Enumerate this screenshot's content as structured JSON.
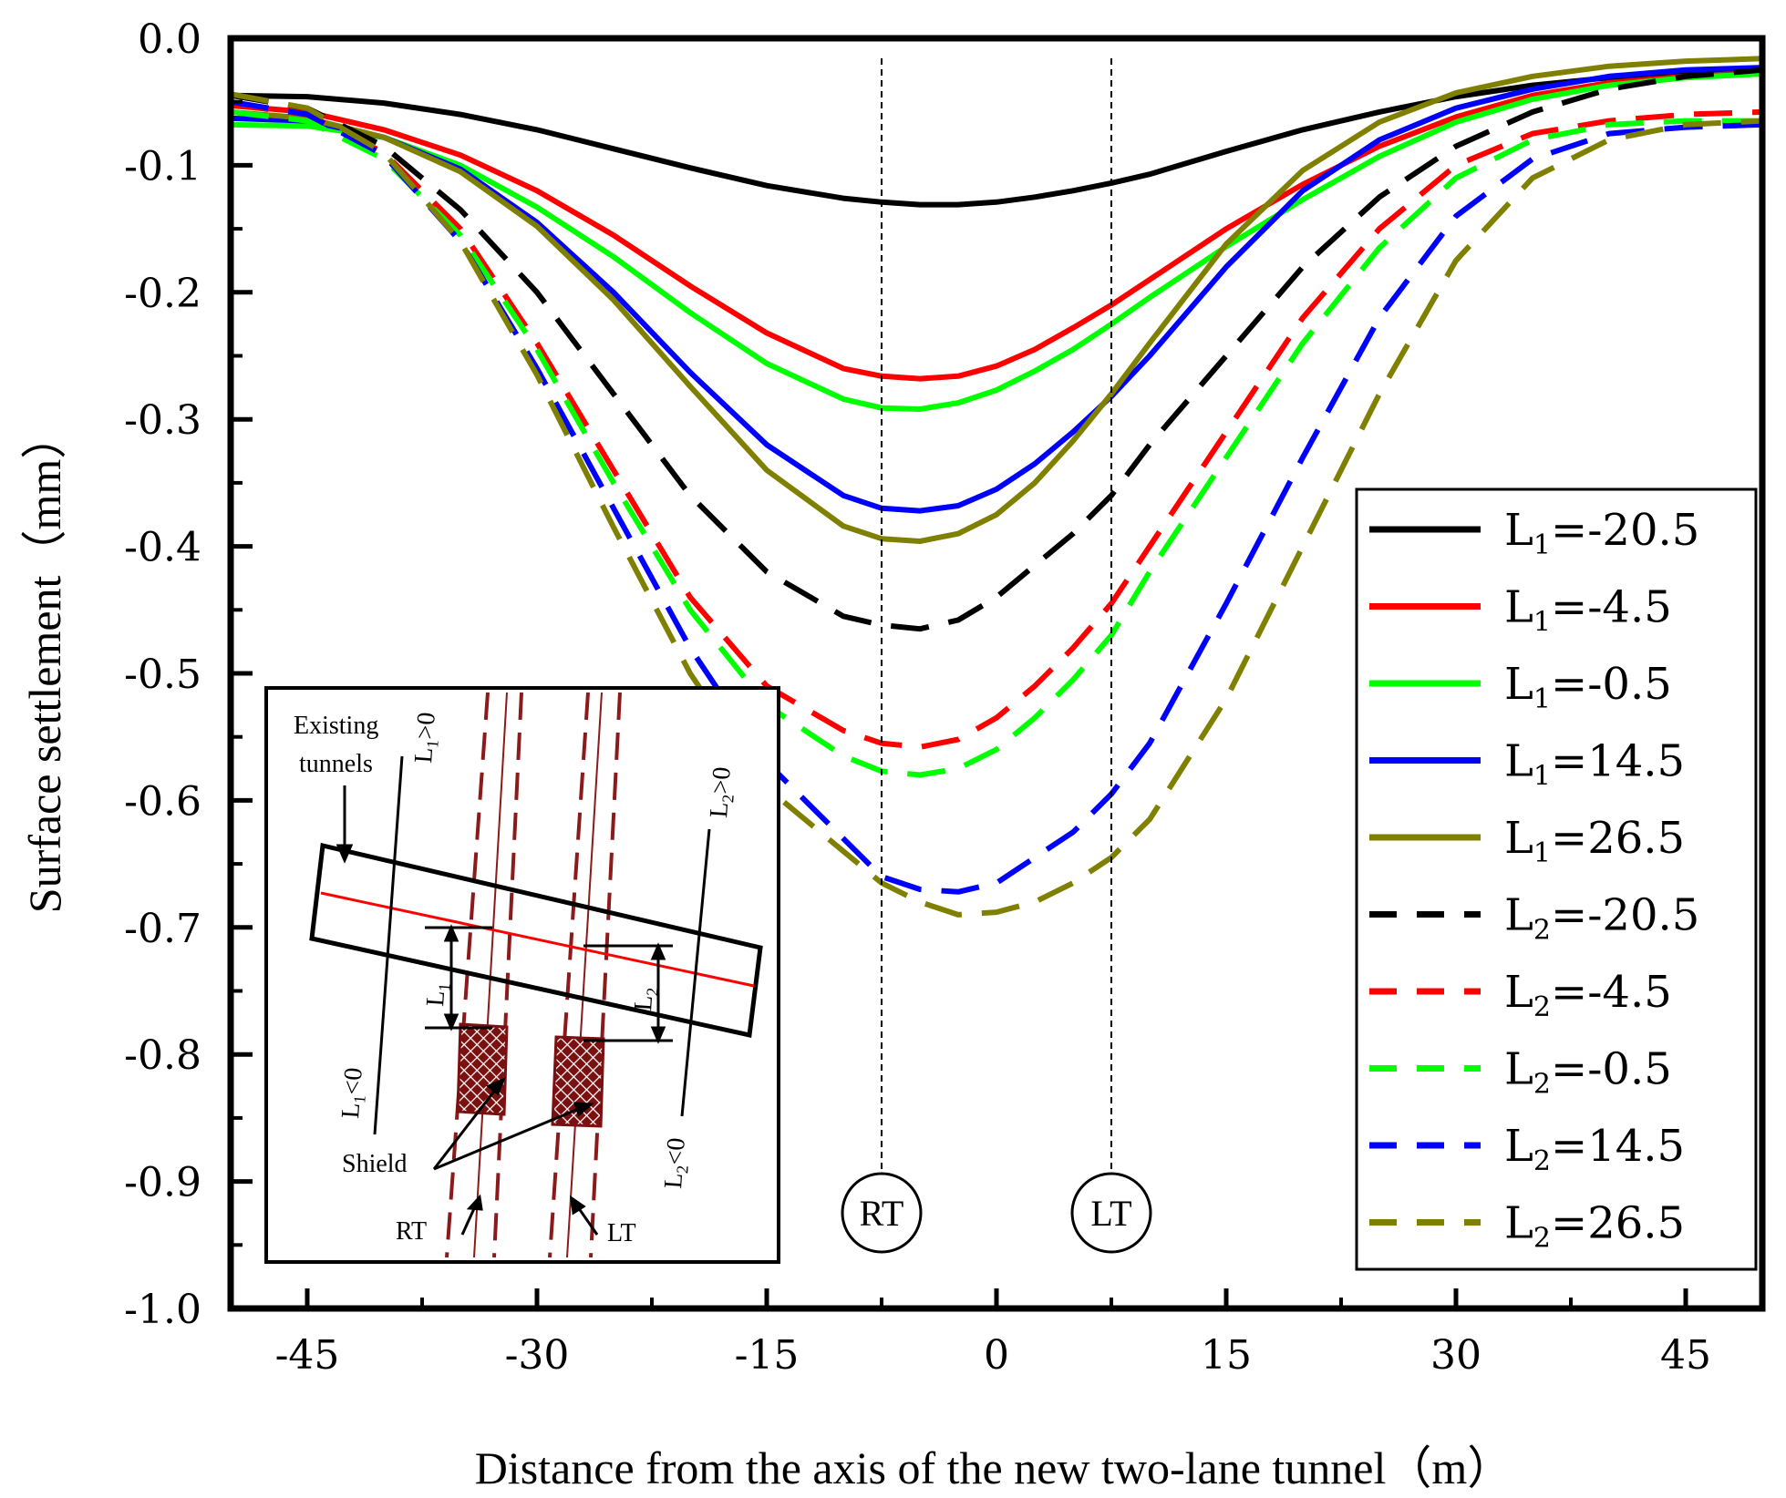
{
  "chart_data": {
    "type": "line",
    "xlabel": "Distance from the axis of the new two-lane tunnel（m）",
    "ylabel": "Surface settlement（mm）",
    "xlim": [
      -50,
      50
    ],
    "ylim": [
      -1.0,
      0.0
    ],
    "xticks": [
      "-45",
      "-30",
      "-15",
      "0",
      "15",
      "30",
      "45"
    ],
    "yticks": [
      "0.0",
      "-0.1",
      "-0.2",
      "-0.3",
      "-0.4",
      "-0.5",
      "-0.6",
      "-0.7",
      "-0.8",
      "-0.9",
      "-1.0"
    ],
    "x": [
      -50,
      -45,
      -40,
      -35,
      -30,
      -25,
      -20,
      -15,
      -10,
      -7.5,
      -5,
      -2.5,
      0,
      2.5,
      5,
      7.5,
      10,
      15,
      20,
      25,
      30,
      35,
      40,
      45,
      50
    ],
    "series": [
      {
        "name": "L1=-20.5",
        "prefix": "L",
        "sub": "1",
        "value": "=-20.5",
        "color": "#000000",
        "dash": "solid",
        "values": [
          -0.045,
          -0.046,
          -0.051,
          -0.06,
          -0.072,
          -0.087,
          -0.102,
          -0.116,
          -0.126,
          -0.129,
          -0.131,
          -0.131,
          -0.129,
          -0.125,
          -0.12,
          -0.114,
          -0.107,
          -0.089,
          -0.072,
          -0.058,
          -0.046,
          -0.037,
          -0.031,
          -0.027,
          -0.025
        ]
      },
      {
        "name": "L1=-4.5",
        "prefix": "L",
        "sub": "1",
        "value": "=-4.5",
        "color": "#ff0000",
        "dash": "solid",
        "values": [
          -0.053,
          -0.058,
          -0.072,
          -0.092,
          -0.12,
          -0.155,
          -0.195,
          -0.232,
          -0.26,
          -0.266,
          -0.268,
          -0.266,
          -0.258,
          -0.245,
          -0.228,
          -0.21,
          -0.19,
          -0.15,
          -0.115,
          -0.085,
          -0.062,
          -0.045,
          -0.035,
          -0.03,
          -0.027
        ]
      },
      {
        "name": "L1=-0.5",
        "prefix": "L",
        "sub": "1",
        "value": "=-0.5",
        "color": "#00ff00",
        "dash": "solid",
        "values": [
          -0.068,
          -0.069,
          -0.078,
          -0.1,
          -0.133,
          -0.172,
          -0.216,
          -0.256,
          -0.284,
          -0.291,
          -0.292,
          -0.287,
          -0.277,
          -0.262,
          -0.245,
          -0.225,
          -0.204,
          -0.164,
          -0.127,
          -0.093,
          -0.066,
          -0.048,
          -0.037,
          -0.031,
          -0.028
        ]
      },
      {
        "name": "L1=14.5",
        "prefix": "L",
        "sub": "1",
        "value": "=14.5",
        "color": "#0000ff",
        "dash": "solid",
        "values": [
          -0.063,
          -0.065,
          -0.078,
          -0.103,
          -0.145,
          -0.2,
          -0.263,
          -0.32,
          -0.36,
          -0.37,
          -0.372,
          -0.368,
          -0.355,
          -0.335,
          -0.31,
          -0.282,
          -0.25,
          -0.18,
          -0.12,
          -0.08,
          -0.055,
          -0.04,
          -0.03,
          -0.025,
          -0.023
        ]
      },
      {
        "name": "L1=26.5",
        "prefix": "L",
        "sub": "1",
        "value": "=26.5",
        "color": "#808000",
        "dash": "solid",
        "values": [
          -0.058,
          -0.063,
          -0.078,
          -0.105,
          -0.148,
          -0.206,
          -0.274,
          -0.34,
          -0.384,
          -0.394,
          -0.396,
          -0.39,
          -0.375,
          -0.35,
          -0.317,
          -0.28,
          -0.24,
          -0.162,
          -0.104,
          -0.066,
          -0.043,
          -0.03,
          -0.022,
          -0.018,
          -0.016
        ]
      },
      {
        "name": "L2=-20.5",
        "prefix": "L",
        "sub": "2",
        "value": "=-20.5",
        "color": "#000000",
        "dash": "dashed",
        "values": [
          -0.045,
          -0.055,
          -0.085,
          -0.135,
          -0.2,
          -0.28,
          -0.36,
          -0.42,
          -0.455,
          -0.462,
          -0.465,
          -0.458,
          -0.44,
          -0.415,
          -0.39,
          -0.36,
          -0.32,
          -0.25,
          -0.18,
          -0.125,
          -0.085,
          -0.058,
          -0.04,
          -0.03,
          -0.025
        ]
      },
      {
        "name": "L2=-4.5",
        "prefix": "L",
        "sub": "2",
        "value": "=-4.5",
        "color": "#ff0000",
        "dash": "dashed",
        "values": [
          -0.052,
          -0.06,
          -0.09,
          -0.15,
          -0.24,
          -0.34,
          -0.44,
          -0.51,
          -0.545,
          -0.555,
          -0.558,
          -0.552,
          -0.535,
          -0.51,
          -0.48,
          -0.445,
          -0.4,
          -0.31,
          -0.22,
          -0.15,
          -0.1,
          -0.075,
          -0.065,
          -0.06,
          -0.058
        ]
      },
      {
        "name": "L2=-0.5",
        "prefix": "L",
        "sub": "2",
        "value": "=-0.5",
        "color": "#00ff00",
        "dash": "dashed",
        "values": [
          -0.058,
          -0.065,
          -0.095,
          -0.155,
          -0.245,
          -0.35,
          -0.45,
          -0.525,
          -0.565,
          -0.577,
          -0.58,
          -0.575,
          -0.56,
          -0.535,
          -0.505,
          -0.47,
          -0.42,
          -0.33,
          -0.24,
          -0.165,
          -0.11,
          -0.08,
          -0.068,
          -0.065,
          -0.065
        ]
      },
      {
        "name": "L2=14.5",
        "prefix": "L",
        "sub": "2",
        "value": "=14.5",
        "color": "#0000ff",
        "dash": "dashed",
        "values": [
          -0.05,
          -0.06,
          -0.092,
          -0.16,
          -0.26,
          -0.37,
          -0.48,
          -0.57,
          -0.63,
          -0.66,
          -0.67,
          -0.672,
          -0.665,
          -0.645,
          -0.625,
          -0.595,
          -0.555,
          -0.445,
          -0.33,
          -0.22,
          -0.14,
          -0.095,
          -0.075,
          -0.07,
          -0.068
        ]
      },
      {
        "name": "L2=26.5",
        "prefix": "L",
        "sub": "2",
        "value": "=26.5",
        "color": "#808000",
        "dash": "dashed",
        "values": [
          -0.044,
          -0.055,
          -0.09,
          -0.16,
          -0.265,
          -0.385,
          -0.5,
          -0.59,
          -0.64,
          -0.665,
          -0.68,
          -0.69,
          -0.688,
          -0.68,
          -0.665,
          -0.645,
          -0.615,
          -0.52,
          -0.4,
          -0.28,
          -0.175,
          -0.11,
          -0.08,
          -0.068,
          -0.065
        ]
      }
    ],
    "vlines": [
      {
        "x": -7.5,
        "label": "RT"
      },
      {
        "x": 7.5,
        "label": "LT"
      }
    ],
    "legend_position": "right"
  },
  "inset": {
    "existing_tunnels": "Existing",
    "existing_tunnels_2": "tunnels",
    "shield": "Shield",
    "rt": "RT",
    "lt": "LT",
    "l1_pos": {
      "p": "L",
      "s": "1",
      "v": ">0"
    },
    "l1_neg": {
      "p": "L",
      "s": "1",
      "v": "<0"
    },
    "l2_pos": {
      "p": "L",
      "s": "2",
      "v": ">0"
    },
    "l2_neg": {
      "p": "L",
      "s": "2",
      "v": "<0"
    },
    "l1": {
      "p": "L",
      "s": "1"
    },
    "l2": {
      "p": "L",
      "s": "2"
    }
  },
  "colors": {
    "shield_fill": "#7b1010",
    "dash_tunnel": "#8b1a1a",
    "axis_line": "#ff0000"
  }
}
